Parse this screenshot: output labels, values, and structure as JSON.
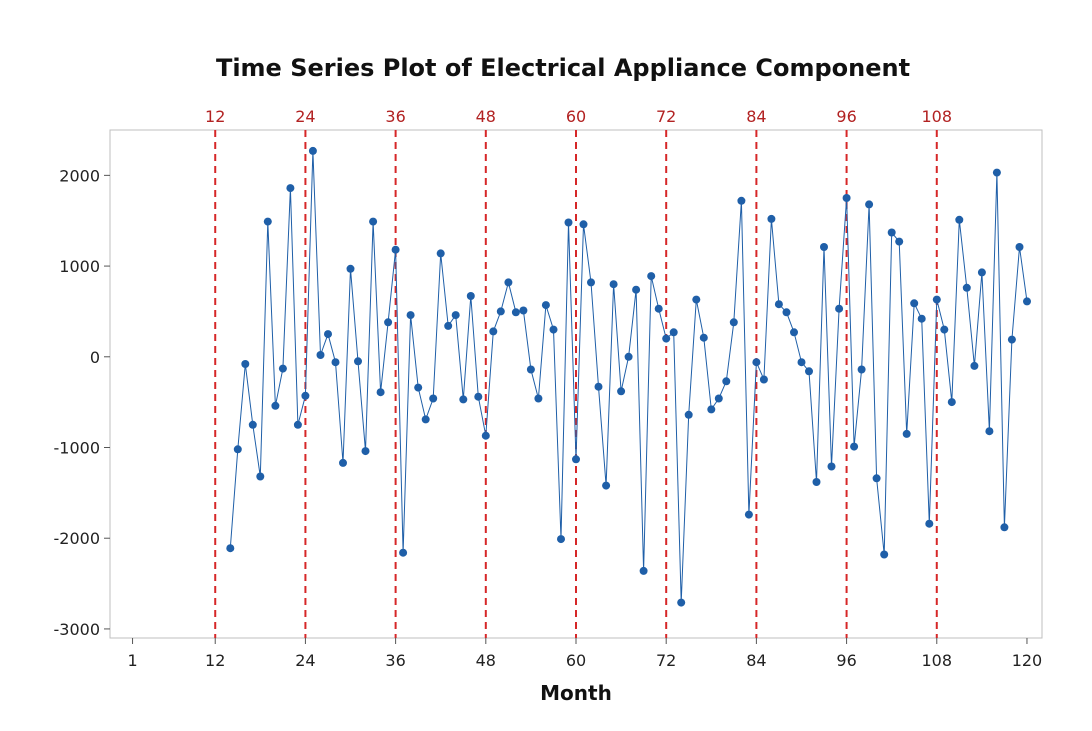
{
  "chart_data": {
    "type": "line",
    "title": "Time Series Plot of Electrical Appliance Component",
    "xlabel": "Month",
    "ylabel": "",
    "xlim": [
      -2,
      122
    ],
    "ylim": [
      -3100,
      2500
    ],
    "xticks": [
      1,
      12,
      24,
      36,
      48,
      60,
      72,
      84,
      96,
      108,
      120
    ],
    "yticks": [
      -3000,
      -2000,
      -1000,
      0,
      1000,
      2000
    ],
    "reference_lines": [
      12,
      24,
      36,
      48,
      60,
      72,
      84,
      96,
      108
    ],
    "reference_color": "#d62728",
    "series_color": "#1f5fa8",
    "grid": false,
    "legend": "none",
    "series": [
      {
        "x": [
          14,
          15,
          16,
          17,
          18,
          19,
          20,
          21,
          22,
          23,
          24,
          25,
          26,
          27,
          28,
          29,
          30,
          31,
          32,
          33,
          34,
          35,
          36,
          37,
          38,
          39,
          40,
          41,
          42,
          43,
          44,
          45,
          46,
          47,
          48,
          49,
          50,
          51,
          52,
          53,
          54,
          55,
          56,
          57,
          58,
          59,
          60,
          61,
          62,
          63,
          64,
          65,
          66,
          67,
          68,
          69,
          70,
          71,
          72,
          73,
          74,
          75,
          76,
          77,
          78,
          79,
          80,
          81,
          82,
          83,
          84,
          85,
          86,
          87,
          88,
          89,
          90,
          91,
          92,
          93,
          94,
          95,
          96,
          97,
          98,
          99,
          100,
          101,
          102,
          103,
          104,
          105,
          106,
          107,
          108,
          109,
          110,
          111,
          112,
          113,
          114,
          115,
          116,
          117,
          118,
          119,
          120
        ],
        "values": [
          -2110,
          -1020,
          -80,
          -750,
          -1320,
          1490,
          -540,
          -130,
          1860,
          -750,
          -430,
          2270,
          20,
          250,
          -60,
          -1170,
          970,
          -50,
          -1040,
          1490,
          -390,
          380,
          1180,
          -2160,
          460,
          -340,
          -690,
          -460,
          1140,
          340,
          460,
          -470,
          670,
          -440,
          -870,
          280,
          500,
          820,
          490,
          510,
          -140,
          -460,
          570,
          300,
          -2010,
          1480,
          -1130,
          1460,
          820,
          -330,
          -1420,
          800,
          -380,
          0,
          740,
          -2360,
          890,
          530,
          200,
          270,
          -2710,
          -640,
          630,
          210,
          -580,
          -460,
          -270,
          380,
          1720,
          -1740,
          -60,
          -250,
          1520,
          580,
          490,
          270,
          -60,
          -160,
          -1380,
          1210,
          -1210,
          530,
          1750,
          -990,
          -140,
          1680,
          -1340,
          -2180,
          1370,
          1270,
          -850,
          590,
          420,
          -1840,
          630,
          300,
          -500,
          1510,
          760,
          -100,
          930,
          -820,
          2030,
          -1880,
          190,
          1210,
          610
        ]
      }
    ]
  }
}
